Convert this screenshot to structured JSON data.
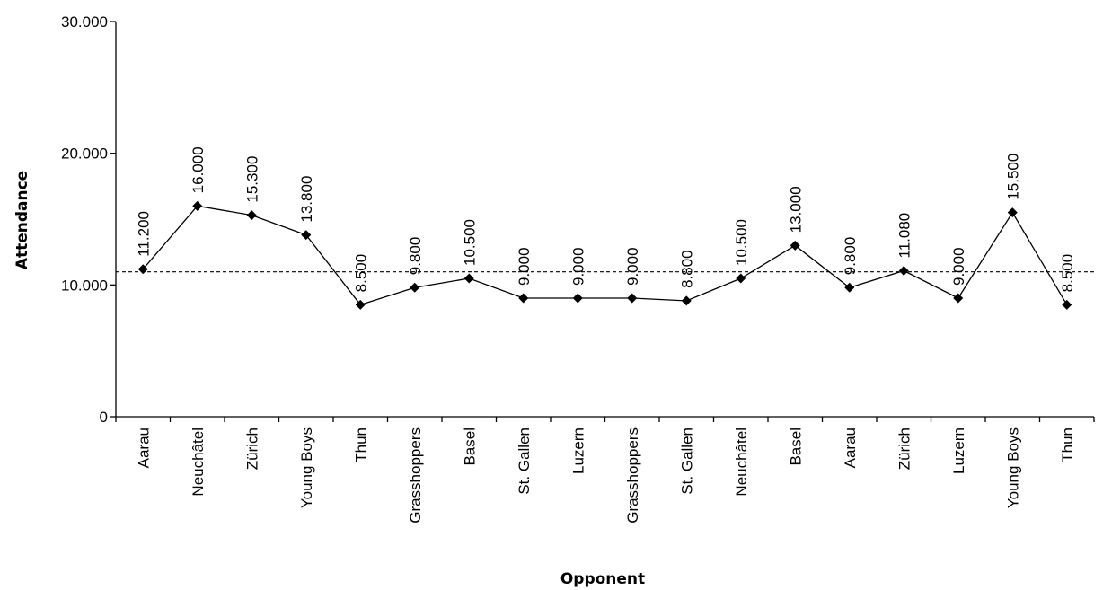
{
  "chart_data": {
    "type": "line",
    "title": "",
    "xlabel": "Opponent",
    "ylabel": "Attendance",
    "ylim": [
      0,
      30000
    ],
    "yticks": [
      0,
      10000,
      20000,
      30000
    ],
    "ytick_labels": [
      "0",
      "10.000",
      "20.000",
      "30.000"
    ],
    "grid": false,
    "legend": "none",
    "categories": [
      "Aarau",
      "Neuchâtel",
      "Zürich",
      "Young Boys",
      "Thun",
      "Grasshoppers",
      "Basel",
      "St. Gallen",
      "Luzern",
      "Grasshoppers",
      "St. Gallen",
      "Neuchâtel",
      "Basel",
      "Aarau",
      "Zürich",
      "Luzern",
      "Young Boys",
      "Thun"
    ],
    "series": [
      {
        "values": [
          11200,
          16000,
          15300,
          13800,
          8500,
          9800,
          10500,
          9000,
          9000,
          9000,
          8800,
          10500,
          13000,
          9800,
          11080,
          9000,
          15500,
          8500
        ],
        "labels": [
          "11.200",
          "16.000",
          "15.300",
          "13.800",
          "8.500",
          "9.800",
          "10.500",
          "9.000",
          "9.000",
          "9.000",
          "8.800",
          "10.500",
          "13.000",
          "9.800",
          "11.080",
          "9.000",
          "15.500",
          "8.500"
        ],
        "color": "#000000",
        "marker": "diamond"
      }
    ],
    "reference_line": {
      "value": 11000,
      "style": "dashed",
      "color": "#000000"
    }
  }
}
